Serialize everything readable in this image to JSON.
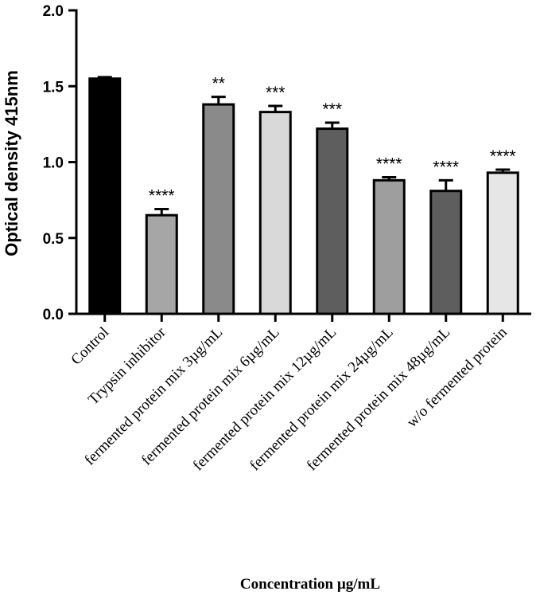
{
  "chart_data": {
    "type": "bar",
    "title": "",
    "xlabel": "Concentration µg/mL",
    "ylabel": "Optical density 415nm",
    "ylim": [
      0,
      2.0
    ],
    "yticks": [
      "0.0",
      "0.5",
      "1.0",
      "1.5",
      "2.0"
    ],
    "categories": [
      "Control",
      "Trypsin inhibitor",
      "fermented protein mix 3µg/mL",
      "fermented protein mix 6µg/mL",
      "fermented protein mix 12µg/mL",
      "fermented protein mix 24µg/mL",
      "fermented protein mix 48µg/mL",
      "w/o fermented protein"
    ],
    "values": [
      1.55,
      0.65,
      1.38,
      1.33,
      1.22,
      0.88,
      0.81,
      0.93
    ],
    "errors": [
      0.01,
      0.04,
      0.05,
      0.04,
      0.04,
      0.02,
      0.07,
      0.02
    ],
    "significance": [
      "",
      "****",
      "**",
      "***",
      "***",
      "****",
      "****",
      "****"
    ],
    "colors": [
      "#000000",
      "#a6a6a6",
      "#8a8a8a",
      "#d9d9d9",
      "#5e5e5e",
      "#9e9e9e",
      "#5e5e5e",
      "#e6e6e6"
    ]
  }
}
